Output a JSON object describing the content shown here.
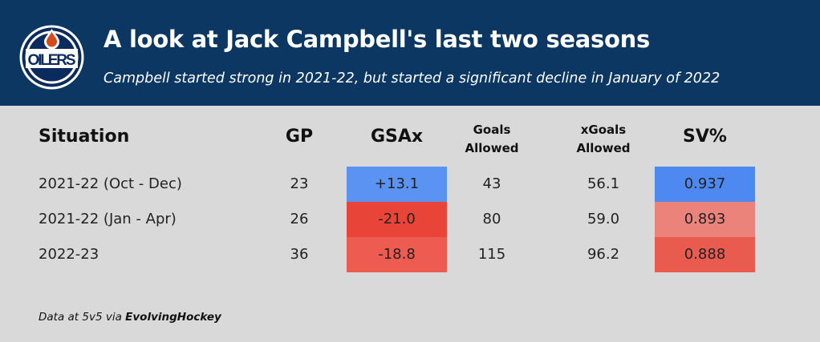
{
  "header": {
    "title": "A look at Jack Campbell's last two seasons",
    "subtitle": "Campbell started strong in 2021-22, but started a significant decline in January of 2022",
    "logo_text": "OILERS"
  },
  "columns": {
    "situation": "Situation",
    "gp": "GP",
    "gsax": "GSAx",
    "goals_allowed": [
      "Goals",
      "Allowed"
    ],
    "xgoals_allowed": [
      "xGoals",
      "Allowed"
    ],
    "sv": "SV%"
  },
  "rows": [
    {
      "situation": "2021-22 (Oct - Dec)",
      "gp": "23",
      "gsax": "+13.1",
      "goals": "43",
      "xgoals": "56.1",
      "sv": "0.937",
      "gsax_color": "#5b93f2",
      "sv_color": "#4d89f0"
    },
    {
      "situation": "2021-22 (Jan - Apr)",
      "gp": "26",
      "gsax": "-21.0",
      "goals": "80",
      "xgoals": "59.0",
      "sv": "0.893",
      "gsax_color": "#e84538",
      "sv_color": "#ec837a"
    },
    {
      "situation": "2022-23",
      "gp": "36",
      "gsax": "-18.8",
      "goals": "115",
      "xgoals": "96.2",
      "sv": "0.888",
      "gsax_color": "#ee5b50",
      "sv_color": "#e95a4f"
    }
  ],
  "footer": {
    "prefix": "Data at 5v5 via ",
    "source": "EvolvingHockey"
  }
}
